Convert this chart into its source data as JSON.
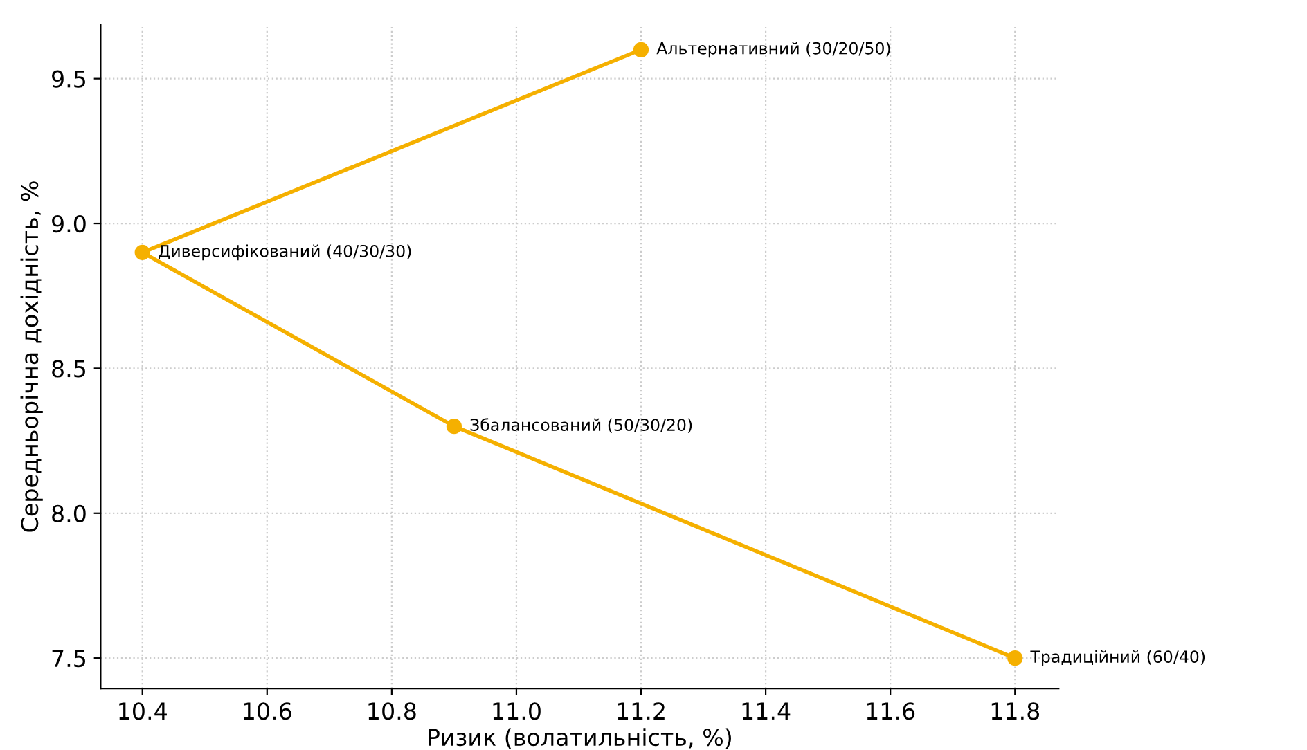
{
  "chart_data": {
    "type": "line",
    "xlabel": "Ризик (волатильність, %)",
    "ylabel": "Середньорічна дохідність, %",
    "x": [
      11.2,
      10.4,
      10.9,
      11.8
    ],
    "series": [
      {
        "color": "#f5b000",
        "values": [
          9.6,
          8.9,
          8.3,
          7.5
        ],
        "value_labels": [
          "Альтернативний (30/20/50)",
          "Диверсифікований (40/30/30)",
          "Збалансований (50/30/20)",
          "Традиційний (60/40)"
        ]
      }
    ],
    "marker": "circle",
    "line_style": "solid",
    "grid": true,
    "xlim": [
      10.333,
      11.87
    ],
    "xticks": [
      10.4,
      10.6,
      10.8,
      {
        "value": 11,
        "label": "11.0"
      },
      11.2,
      11.4,
      11.6,
      11.8
    ],
    "ylim": [
      7.395,
      9.686
    ],
    "yticks": [
      7.5,
      {
        "value": 8,
        "label": "8.0"
      },
      8.5,
      {
        "value": 9,
        "label": "9.0"
      },
      9.5
    ]
  }
}
